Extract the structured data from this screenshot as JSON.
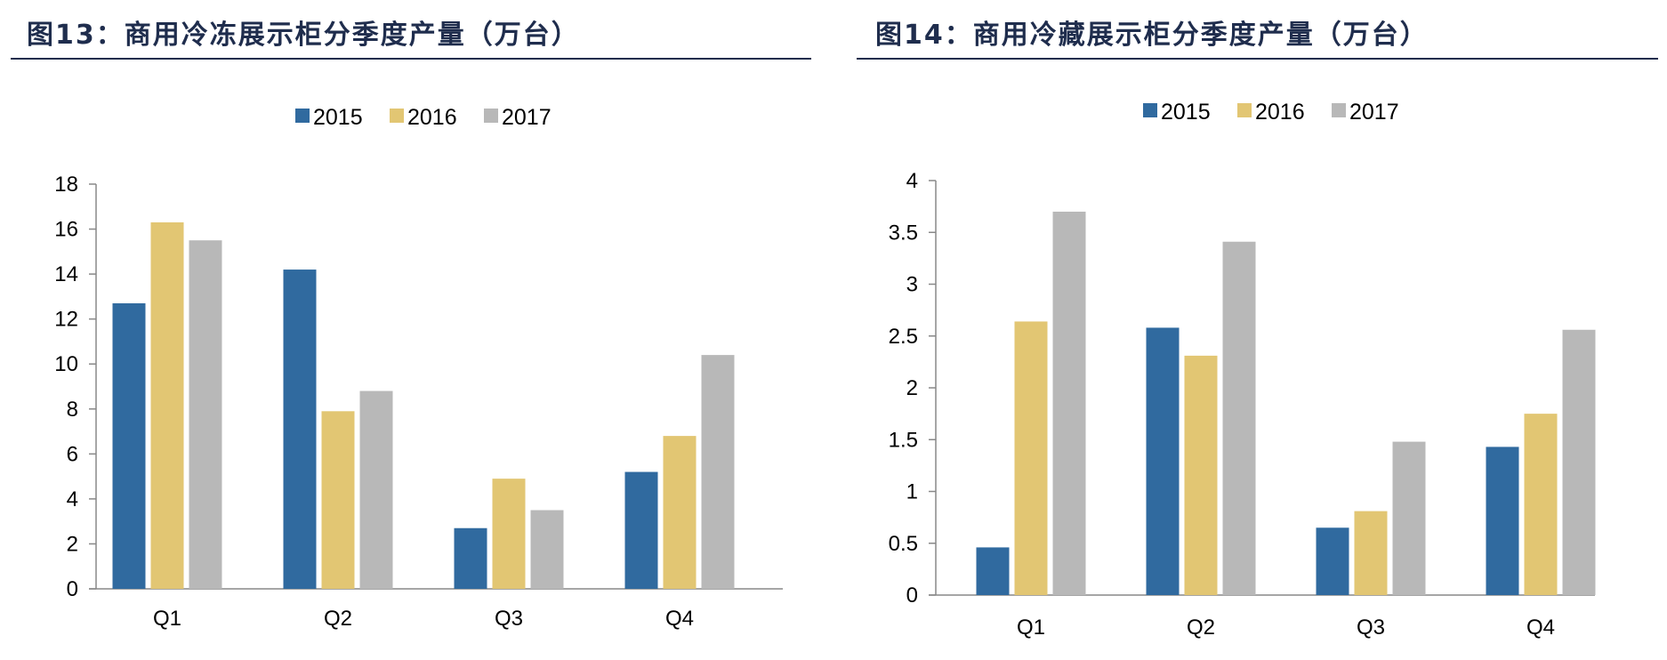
{
  "colors": {
    "2015": "#306a9f",
    "2016": "#e2c673",
    "2017": "#b8b8b8",
    "title": "#1f2d4d"
  },
  "chart_data": [
    {
      "type": "bar",
      "title": "图13：商用冷冻展示柜分季度产量（万台）",
      "categories": [
        "Q1",
        "Q2",
        "Q3",
        "Q4"
      ],
      "series": [
        {
          "name": "2015",
          "values": [
            12.7,
            14.2,
            2.7,
            5.2
          ]
        },
        {
          "name": "2016",
          "values": [
            16.3,
            7.9,
            4.9,
            6.8
          ]
        },
        {
          "name": "2017",
          "values": [
            15.5,
            8.8,
            3.5,
            10.4
          ]
        }
      ],
      "ylim": [
        0,
        18
      ],
      "yticks": [
        "0",
        "2",
        "4",
        "6",
        "8",
        "10",
        "12",
        "14",
        "16",
        "18"
      ],
      "ytick_values": [
        0,
        2,
        4,
        6,
        8,
        10,
        12,
        14,
        16,
        18
      ],
      "legend": "top",
      "grid": false
    },
    {
      "type": "bar",
      "title": "图14：商用冷藏展示柜分季度产量（万台）",
      "categories": [
        "Q1",
        "Q2",
        "Q3",
        "Q4"
      ],
      "series": [
        {
          "name": "2015",
          "values": [
            0.46,
            2.58,
            0.65,
            1.43
          ]
        },
        {
          "name": "2016",
          "values": [
            2.64,
            2.31,
            0.81,
            1.75
          ]
        },
        {
          "name": "2017",
          "values": [
            3.7,
            3.41,
            1.48,
            2.56
          ]
        }
      ],
      "ylim": [
        0,
        4
      ],
      "yticks": [
        "0",
        "0.5",
        "1",
        "1.5",
        "2",
        "2.5",
        "3",
        "3.5",
        "4"
      ],
      "ytick_values": [
        0,
        0.5,
        1,
        1.5,
        2,
        2.5,
        3,
        3.5,
        4
      ],
      "legend": "top",
      "grid": false
    }
  ]
}
